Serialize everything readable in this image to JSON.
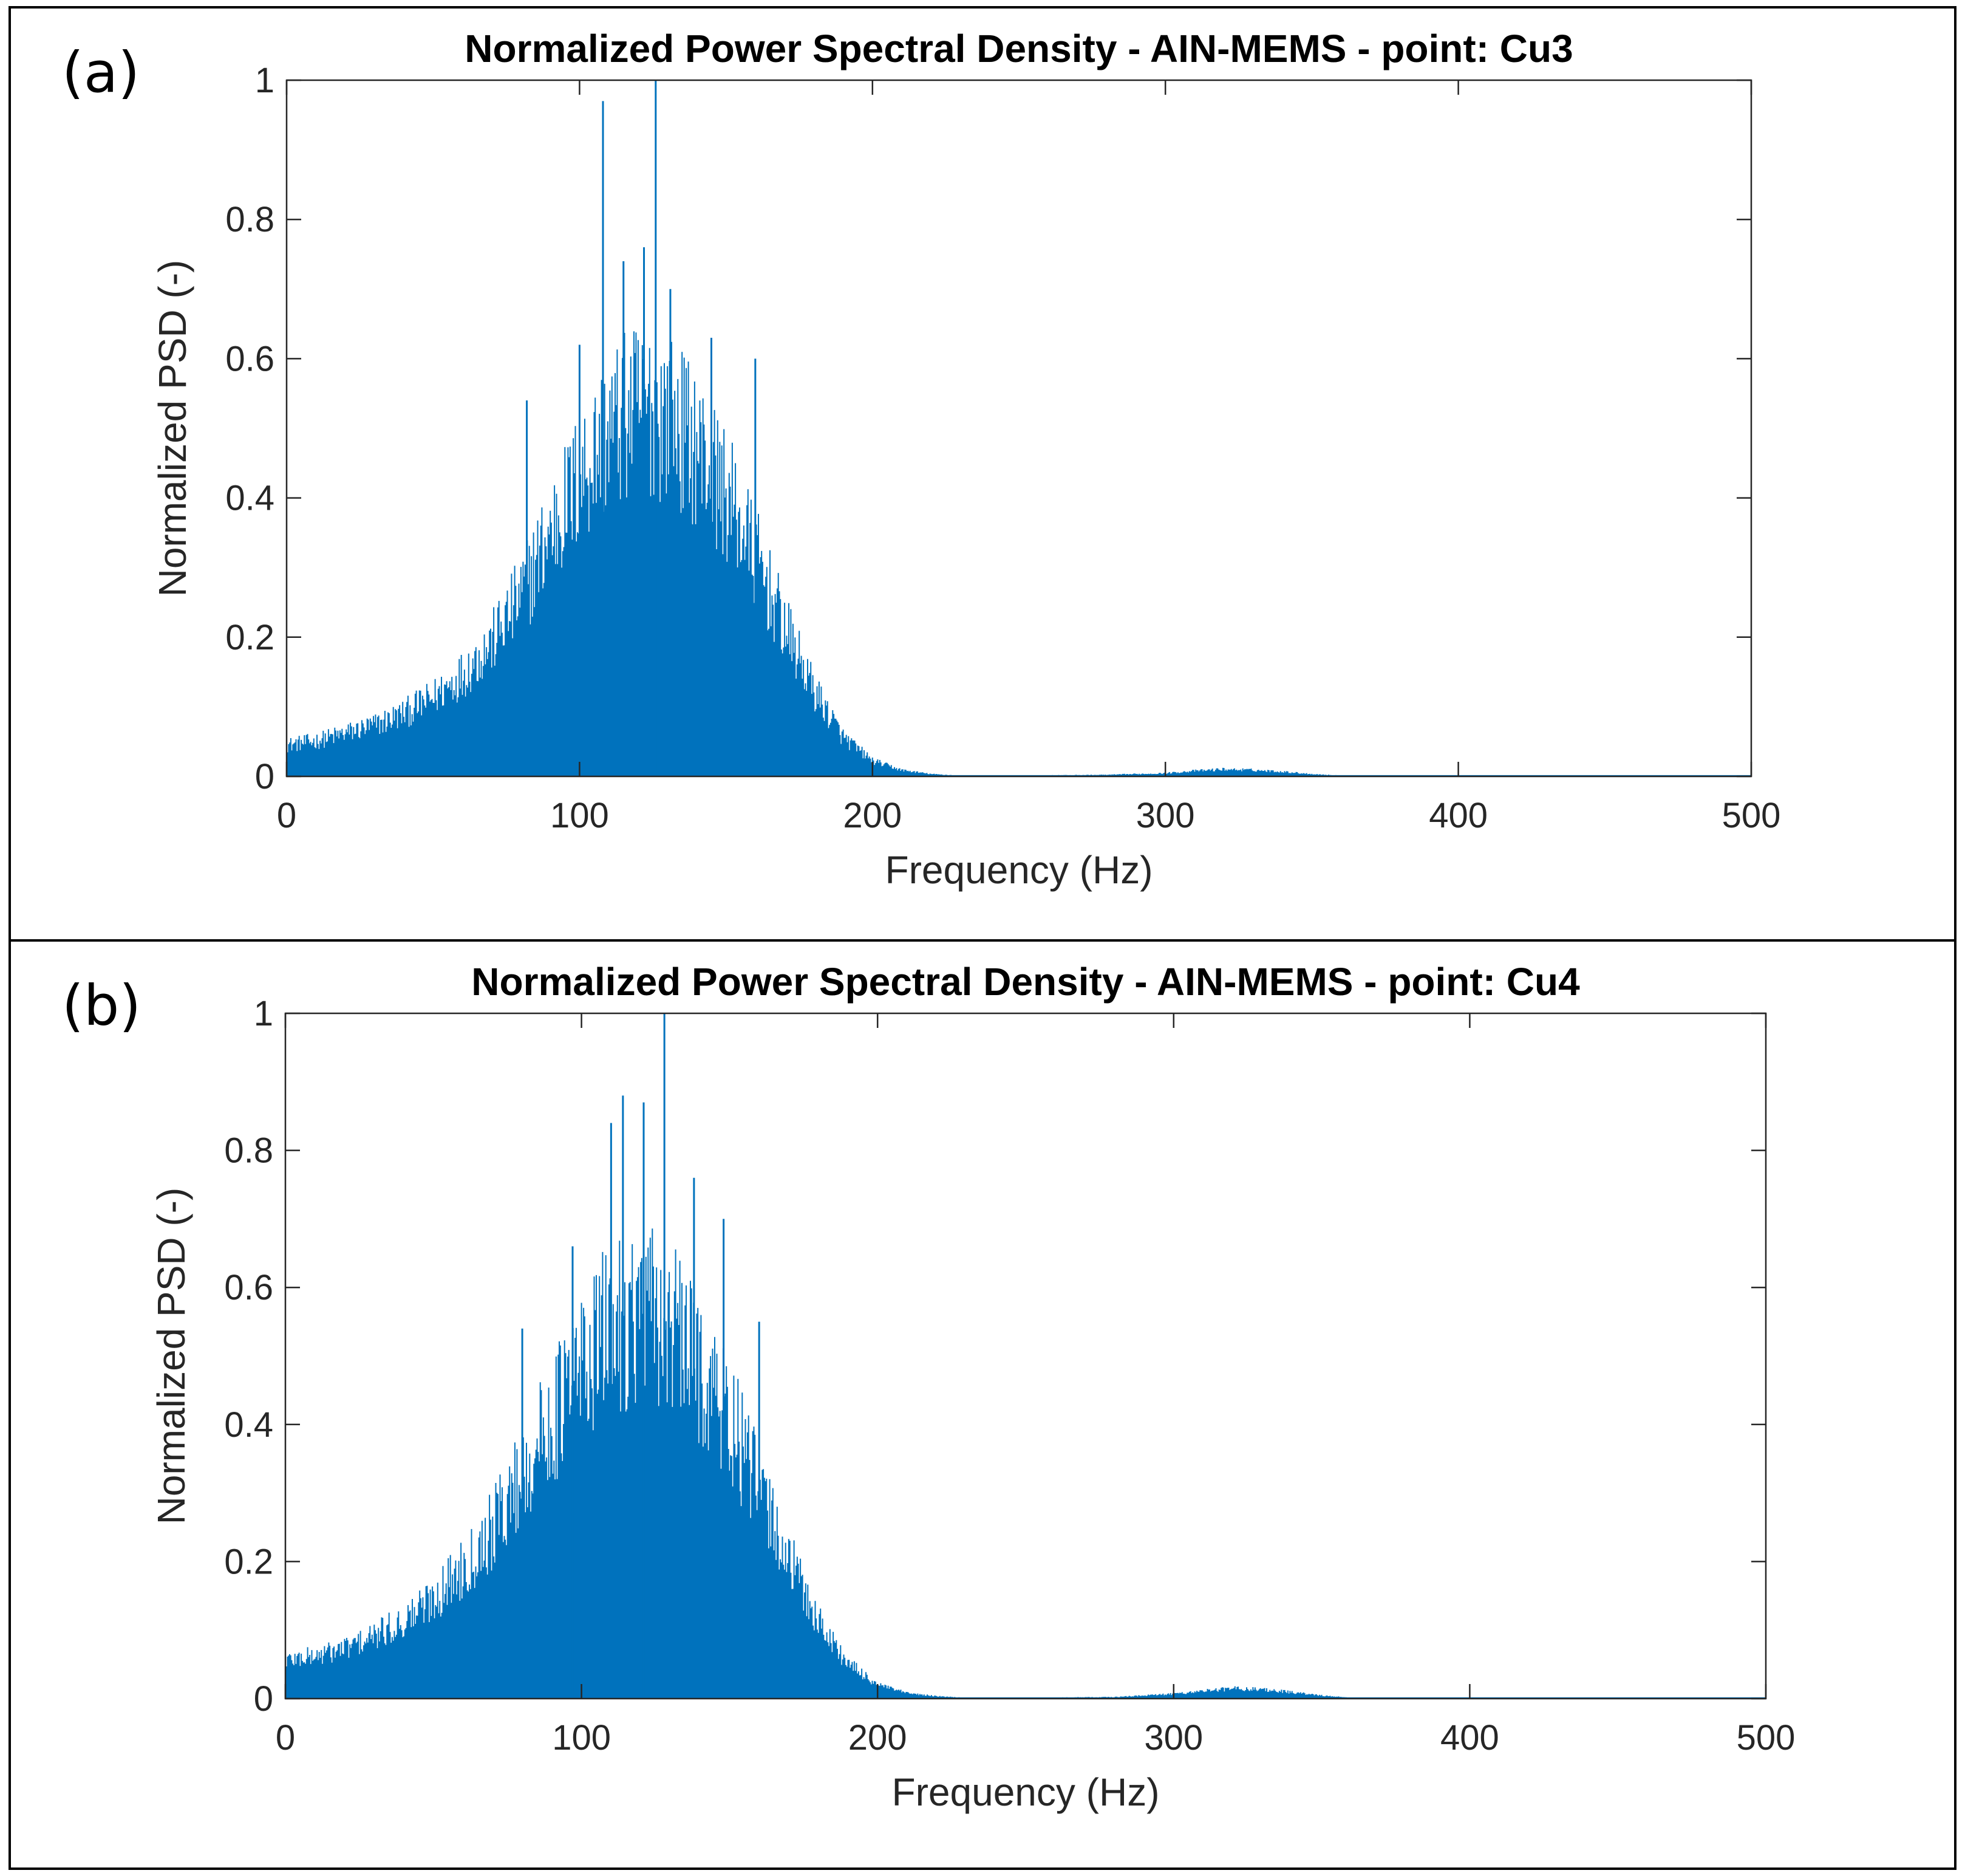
{
  "chart_data": [
    {
      "type": "bar",
      "panel_label": "(a)",
      "title": "Normalized Power Spectral Density - AIN-MEMS - point: Cu3",
      "xlabel": "Frequency (Hz)",
      "ylabel": "Normalized PSD (-)",
      "xlim": [
        0,
        500
      ],
      "ylim": [
        0,
        1
      ],
      "xticks": [
        "0",
        "100",
        "200",
        "300",
        "400",
        "500"
      ],
      "yticks": [
        "0",
        "0.2",
        "0.4",
        "0.6",
        "0.8",
        "1"
      ],
      "grid": false,
      "color": "#0072BD",
      "x": [
        0,
        10,
        20,
        30,
        40,
        50,
        60,
        70,
        80,
        90,
        100,
        110,
        120,
        130,
        140,
        150,
        160,
        170,
        180,
        190,
        200,
        210,
        220,
        230,
        250,
        280,
        300,
        310,
        320,
        330,
        340,
        350,
        360,
        400,
        450,
        500
      ],
      "values": [
        0.04,
        0.045,
        0.055,
        0.065,
        0.08,
        0.1,
        0.13,
        0.17,
        0.23,
        0.31,
        0.38,
        0.44,
        0.47,
        0.46,
        0.42,
        0.36,
        0.28,
        0.19,
        0.11,
        0.05,
        0.02,
        0.008,
        0.003,
        0.001,
        0.001,
        0.002,
        0.004,
        0.007,
        0.009,
        0.008,
        0.006,
        0.003,
        0.001,
        0.001,
        0.001,
        0.001
      ],
      "peaks": [
        {
          "x": 108,
          "y": 0.97
        },
        {
          "x": 126,
          "y": 1.0
        },
        {
          "x": 115,
          "y": 0.74
        },
        {
          "x": 122,
          "y": 0.76
        },
        {
          "x": 131,
          "y": 0.7
        },
        {
          "x": 145,
          "y": 0.63
        },
        {
          "x": 160,
          "y": 0.6
        },
        {
          "x": 82,
          "y": 0.54
        },
        {
          "x": 100,
          "y": 0.62
        }
      ]
    },
    {
      "type": "bar",
      "panel_label": "(b)",
      "title": "Normalized Power Spectral Density - AIN-MEMS - point: Cu4",
      "xlabel": "Frequency (Hz)",
      "ylabel": "Normalized PSD (-)",
      "xlim": [
        0,
        500
      ],
      "ylim": [
        0,
        1
      ],
      "xticks": [
        "0",
        "100",
        "200",
        "300",
        "400",
        "500"
      ],
      "yticks": [
        "0",
        "0.2",
        "0.4",
        "0.6",
        "0.8",
        "1"
      ],
      "grid": false,
      "color": "#0072BD",
      "x": [
        0,
        10,
        20,
        30,
        40,
        50,
        60,
        70,
        80,
        90,
        100,
        110,
        120,
        130,
        140,
        150,
        160,
        170,
        180,
        190,
        200,
        210,
        220,
        230,
        250,
        280,
        300,
        310,
        320,
        330,
        340,
        350,
        360,
        400,
        450,
        500
      ],
      "values": [
        0.05,
        0.055,
        0.065,
        0.08,
        0.1,
        0.13,
        0.17,
        0.22,
        0.29,
        0.36,
        0.43,
        0.48,
        0.5,
        0.48,
        0.43,
        0.36,
        0.27,
        0.18,
        0.1,
        0.045,
        0.018,
        0.007,
        0.003,
        0.001,
        0.001,
        0.002,
        0.006,
        0.01,
        0.013,
        0.012,
        0.008,
        0.004,
        0.001,
        0.001,
        0.001,
        0.001
      ],
      "peaks": [
        {
          "x": 128,
          "y": 1.0
        },
        {
          "x": 114,
          "y": 0.88
        },
        {
          "x": 121,
          "y": 0.87
        },
        {
          "x": 110,
          "y": 0.84
        },
        {
          "x": 138,
          "y": 0.76
        },
        {
          "x": 148,
          "y": 0.7
        },
        {
          "x": 97,
          "y": 0.66
        },
        {
          "x": 80,
          "y": 0.54
        },
        {
          "x": 160,
          "y": 0.55
        }
      ]
    }
  ]
}
